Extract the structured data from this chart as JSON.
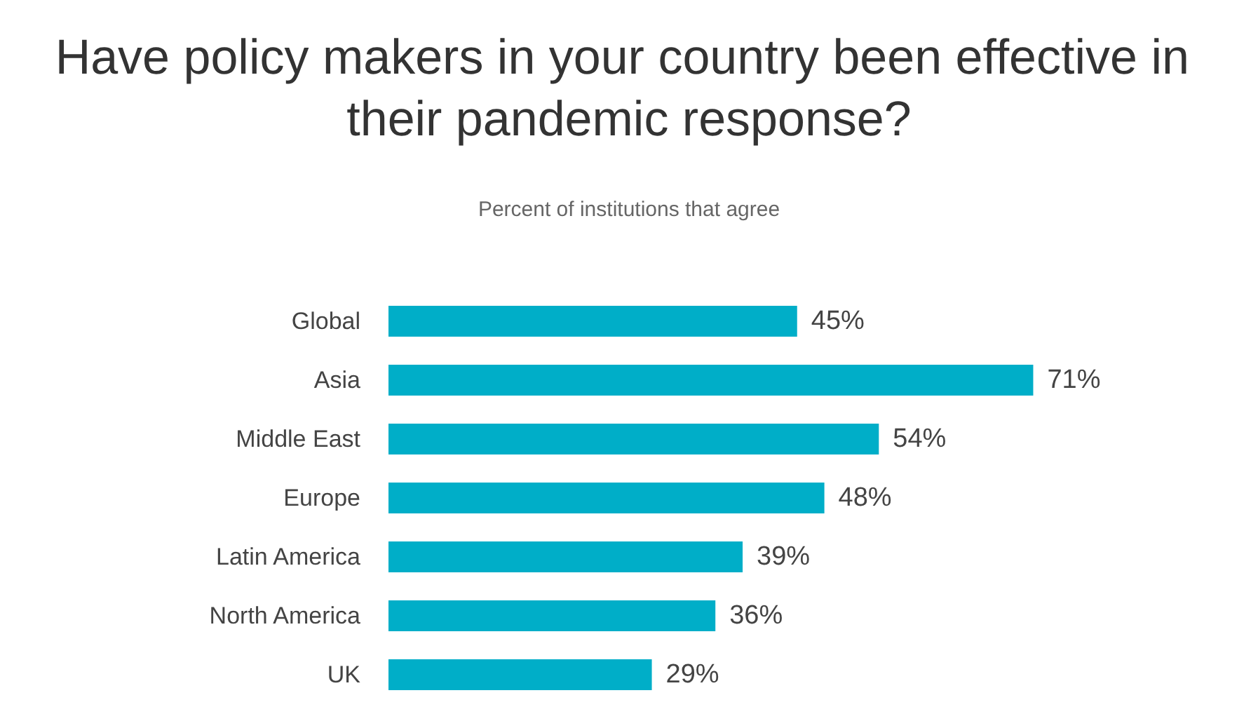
{
  "chart_data": {
    "type": "bar",
    "orientation": "horizontal",
    "title": "Have policy makers in your country been effective in their pandemic response?",
    "subtitle": "Percent of institutions that agree",
    "categories": [
      "Global",
      "Asia",
      "Middle East",
      "Europe",
      "Latin America",
      "North America",
      "UK"
    ],
    "values": [
      45,
      71,
      54,
      48,
      39,
      36,
      29
    ],
    "value_labels": [
      "45%",
      "71%",
      "54%",
      "48%",
      "39%",
      "36%",
      "29%"
    ],
    "color": "#00aec8",
    "tick_labels": "y"
  }
}
